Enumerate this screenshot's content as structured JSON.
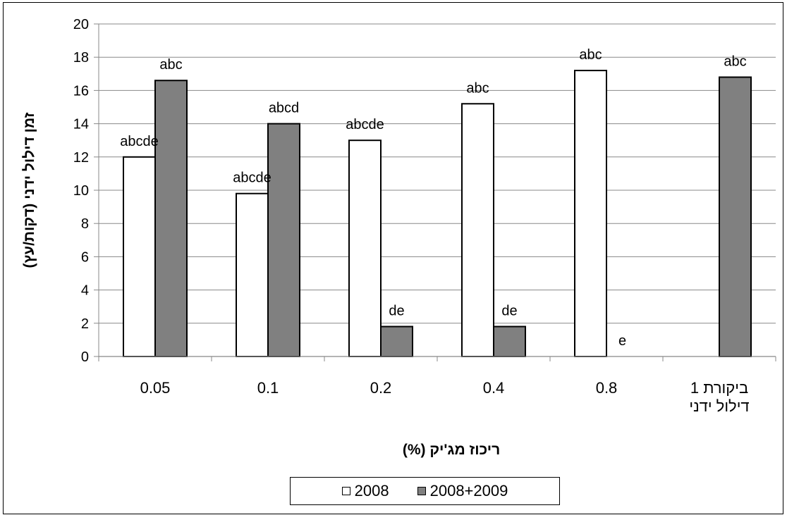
{
  "chart_data": {
    "type": "bar",
    "title": "",
    "xlabel": "ריכוז מג'יק (%)",
    "ylabel": "זמן דילול ידני (דקות/עץ)",
    "ylim": [
      0,
      20
    ],
    "yticks": [
      "0",
      "2",
      "4",
      "6",
      "8",
      "10",
      "12",
      "14",
      "16",
      "18",
      "20"
    ],
    "categories": [
      {
        "lines": [
          "0.05"
        ]
      },
      {
        "lines": [
          "0.1"
        ]
      },
      {
        "lines": [
          "0.2"
        ]
      },
      {
        "lines": [
          "0.4"
        ]
      },
      {
        "lines": [
          "0.8"
        ]
      },
      {
        "lines": [
          "ביקורת 1",
          "דילול ידני"
        ]
      }
    ],
    "series": [
      {
        "name": "2008",
        "color": "#ffffff",
        "values": [
          12.0,
          9.8,
          13.0,
          15.2,
          17.2,
          null
        ],
        "labels": [
          "abcde",
          "abcde",
          "abcde",
          "abc",
          "abc",
          ""
        ]
      },
      {
        "name": "2008+2009",
        "color": "#808080",
        "values": [
          16.6,
          14.0,
          1.8,
          1.8,
          0,
          16.8
        ],
        "labels": [
          "abc",
          "abcd",
          "de",
          "de",
          "e",
          "abc"
        ]
      }
    ],
    "grid": "horizontal",
    "legend_position": "bottom"
  }
}
